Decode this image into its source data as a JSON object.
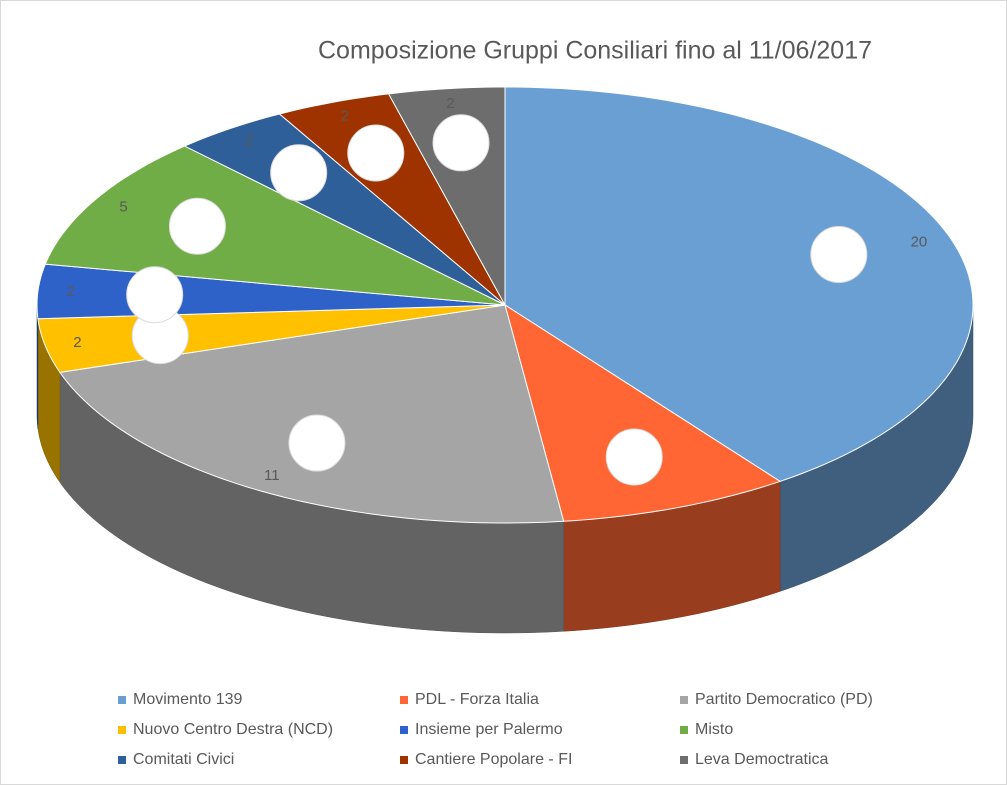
{
  "chart_data": {
    "type": "pie3d",
    "title": "Composizione Gruppi Consiliari fino al 11/06/2017",
    "categories": [
      "Movimento 139",
      "PDL - Forza Italia",
      "Partito Democratico (PD)",
      "Nuovo Centro Destra (NCD)",
      "Insieme per Palermo",
      "Misto",
      "Comitati Civici",
      "Cantiere Popolare - FI",
      "Leva Democtratica"
    ],
    "values": [
      20,
      4,
      11,
      2,
      2,
      5,
      2,
      2,
      2
    ],
    "value_labels": [
      "20",
      null,
      "11",
      "2",
      "2",
      "5",
      "2",
      "2",
      "2"
    ],
    "colors": [
      "#6a9fd4",
      "#ff6633",
      "#a5a5a5",
      "#ffc000",
      "#2f62c8",
      "#70ad47",
      "#2e5f99",
      "#9e3300",
      "#6d6d6d"
    ],
    "legend": "bottom"
  }
}
